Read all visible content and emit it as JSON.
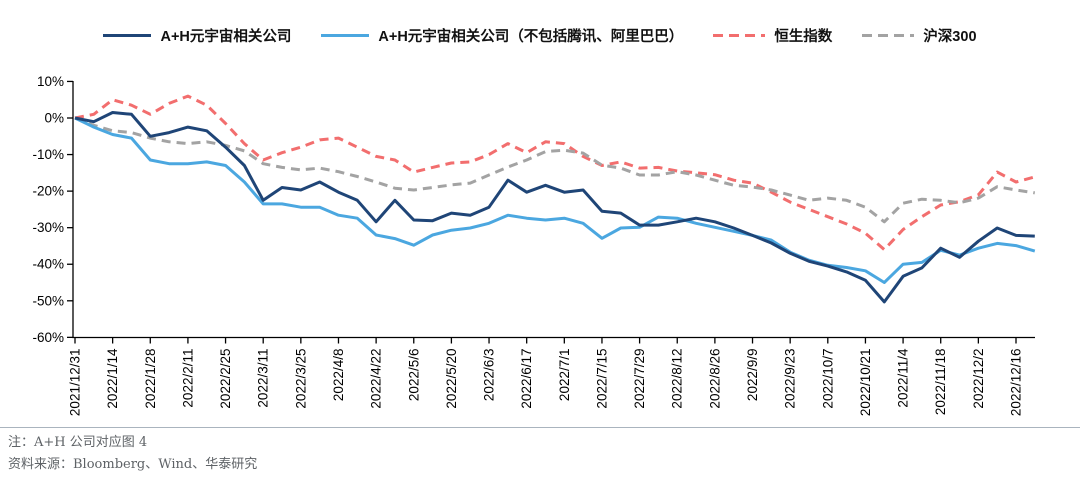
{
  "figure": {
    "legend": [
      {
        "label": "A+H元宇宙相关公司",
        "color": "#1F4577",
        "style": "solid"
      },
      {
        "label": "A+H元宇宙相关公司（不包括腾讯、阿里巴巴）",
        "color": "#4BA7E0",
        "style": "solid"
      },
      {
        "label": "恒生指数",
        "color": "#F26E6E",
        "style": "dashed"
      },
      {
        "label": "沪深300",
        "color": "#A3A3A3",
        "style": "dashed"
      }
    ],
    "note": "注：A+H 公司对应图 4",
    "source": "资料来源：Bloomberg、Wind、华泰研究"
  },
  "chart_data": {
    "type": "line",
    "title": "",
    "xlabel": "",
    "ylabel": "",
    "ylim": [
      -60,
      10
    ],
    "yticks": [
      10,
      0,
      -10,
      -20,
      -30,
      -40,
      -50,
      -60
    ],
    "ytick_suffix": "%",
    "grid": false,
    "legend_position": "top",
    "x": [
      "2021/12/31",
      "2022/1/7",
      "2022/1/14",
      "2022/1/21",
      "2022/1/28",
      "2022/2/4",
      "2022/2/11",
      "2022/2/18",
      "2022/2/25",
      "2022/3/4",
      "2022/3/11",
      "2022/3/18",
      "2022/3/25",
      "2022/4/1",
      "2022/4/8",
      "2022/4/15",
      "2022/4/22",
      "2022/4/29",
      "2022/5/6",
      "2022/5/13",
      "2022/5/20",
      "2022/5/27",
      "2022/6/3",
      "2022/6/10",
      "2022/6/17",
      "2022/6/24",
      "2022/7/1",
      "2022/7/8",
      "2022/7/15",
      "2022/7/22",
      "2022/7/29",
      "2022/8/5",
      "2022/8/12",
      "2022/8/19",
      "2022/8/26",
      "2022/9/2",
      "2022/9/9",
      "2022/9/16",
      "2022/9/23",
      "2022/9/30",
      "2022/10/7",
      "2022/10/14",
      "2022/10/21",
      "2022/10/28",
      "2022/11/4",
      "2022/11/11",
      "2022/11/18",
      "2022/11/25",
      "2022/12/2",
      "2022/12/9",
      "2022/12/16",
      "2022/12/23"
    ],
    "x_tick_labels": [
      "2021/12/31",
      "2022/1/14",
      "2022/1/28",
      "2022/2/11",
      "2022/2/25",
      "2022/3/11",
      "2022/3/25",
      "2022/4/8",
      "2022/4/22",
      "2022/5/6",
      "2022/5/20",
      "2022/6/3",
      "2022/6/17",
      "2022/7/1",
      "2022/7/15",
      "2022/7/29",
      "2022/8/12",
      "2022/8/26",
      "2022/9/9",
      "2022/9/23",
      "2022/10/7",
      "2022/10/21",
      "2022/11/4",
      "2022/11/18",
      "2022/12/2",
      "2022/12/16"
    ],
    "series": [
      {
        "name": "A+H元宇宙相关公司",
        "color": "#1F4577",
        "dash": null,
        "values": [
          0,
          -1,
          1.5,
          1,
          -5,
          -4,
          -2.5,
          -3.5,
          -8,
          -13,
          -22.5,
          -19,
          -19.7,
          -17.5,
          -20.3,
          -22.5,
          -28.4,
          -22.5,
          -27.9,
          -28.1,
          -26,
          -26.6,
          -24.4,
          -17,
          -20.3,
          -18.4,
          -20.3,
          -19.7,
          -25.5,
          -26,
          -29.3,
          -29.3,
          -28.4,
          -27.4,
          -28.4,
          -30.1,
          -32.1,
          -34.2,
          -37,
          -39.2,
          -40.5,
          -42.1,
          -44.4,
          -50.3,
          -43.3,
          -41,
          -35.6,
          -38.1,
          -33.7,
          -30.1,
          -32.1,
          -32.3
        ]
      },
      {
        "name": "A+H元宇宙相关公司（不包括腾讯、阿里巴巴）",
        "color": "#4BA7E0",
        "dash": null,
        "values": [
          0,
          -2.5,
          -4.5,
          -5.5,
          -11.5,
          -12.5,
          -12.5,
          -12,
          -13,
          -17.5,
          -23.5,
          -23.5,
          -24.4,
          -24.4,
          -26.6,
          -27.4,
          -32,
          -33,
          -34.8,
          -32,
          -30.7,
          -30.1,
          -28.8,
          -26.6,
          -27.4,
          -27.9,
          -27.4,
          -28.8,
          -32.9,
          -30.1,
          -29.9,
          -27.1,
          -27.4,
          -28.8,
          -29.9,
          -31,
          -32.1,
          -33.4,
          -36.7,
          -38.9,
          -40.3,
          -40.9,
          -41.8,
          -45,
          -40,
          -39.5,
          -36.2,
          -37.5,
          -35.6,
          -34.3,
          -34.9,
          -36.4
        ]
      },
      {
        "name": "恒生指数",
        "color": "#F26E6E",
        "dash": [
          9,
          6
        ],
        "values": [
          0,
          1,
          5,
          3.5,
          1,
          4,
          6,
          3.5,
          -1.5,
          -7,
          -11.5,
          -9.5,
          -8,
          -6,
          -5.5,
          -8,
          -10.5,
          -11.5,
          -14.8,
          -13.5,
          -12.3,
          -12,
          -10,
          -7,
          -9.5,
          -6.5,
          -7,
          -10.5,
          -13,
          -12,
          -13.7,
          -13.5,
          -14.5,
          -15,
          -15.5,
          -17,
          -17.8,
          -20.3,
          -23,
          -25,
          -27,
          -29,
          -31.5,
          -36,
          -30.5,
          -27,
          -23.8,
          -22.9,
          -21,
          -14.8,
          -17.5,
          -16.1
        ]
      },
      {
        "name": "沪深300",
        "color": "#A3A3A3",
        "dash": [
          9,
          6
        ],
        "values": [
          0,
          -2,
          -3.5,
          -4,
          -5.5,
          -6.5,
          -7,
          -6.5,
          -7.5,
          -9,
          -12.5,
          -13.5,
          -14.2,
          -13.7,
          -14.7,
          -16,
          -17.5,
          -19.2,
          -19.7,
          -19,
          -18.3,
          -17.8,
          -15.6,
          -13.4,
          -11.5,
          -9.2,
          -8.8,
          -9.6,
          -12.9,
          -13.7,
          -15.6,
          -15.6,
          -14.7,
          -15.6,
          -17,
          -18.4,
          -18.9,
          -19.7,
          -21.1,
          -22.5,
          -21.9,
          -22.5,
          -24.4,
          -28.4,
          -23.3,
          -22.2,
          -22.5,
          -23.2,
          -21.9,
          -18.8,
          -19.7,
          -20.5
        ]
      }
    ]
  }
}
